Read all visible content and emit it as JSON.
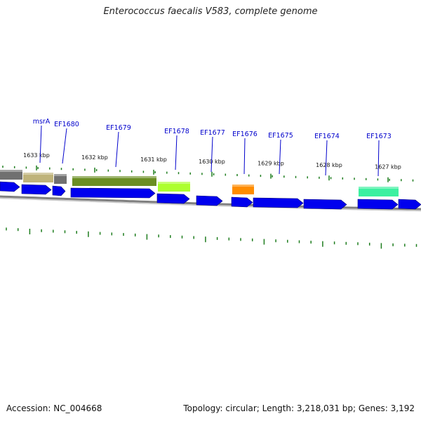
{
  "title": "Enterococcus faecalis V583, complete genome",
  "footer": {
    "accession": "Accession: NC_004668",
    "topology": "Topology: circular; Length: 3,218,031 bp; Genes: 3,192"
  },
  "colors": {
    "gene_blue": "#0000ee",
    "gene_label": "#0000cc",
    "gc_tick": "#1e7d1e",
    "backbone": "#7f7f7f",
    "msrA_region": "#bfb37a",
    "EF1679_region": "#6b8e23",
    "EF1678_region": "#adff2f",
    "EF1676_region": "#ff8c00",
    "EF1673_region": "#3cf0a0",
    "unnamed_region": "#707070"
  },
  "scale_labels": [
    "1633 kbp",
    "1632 kbp",
    "1631 kbp",
    "1630 kbp",
    "1629 kbp",
    "1628 kbp",
    "1627 kbp"
  ],
  "gene_labels": [
    "msrA",
    "EF1680",
    "EF1679",
    "EF1678",
    "EF1677",
    "EF1676",
    "EF1675",
    "EF1674",
    "EF1673"
  ]
}
